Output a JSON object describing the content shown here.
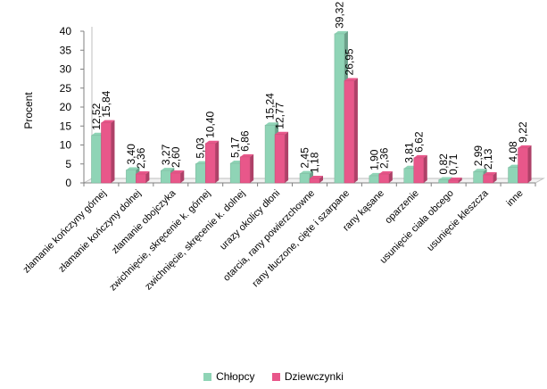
{
  "chart_data": {
    "type": "bar",
    "ylabel": "Procent",
    "ylim": [
      0,
      40
    ],
    "yticks": [
      0,
      5,
      10,
      15,
      20,
      25,
      30,
      35,
      40
    ],
    "grid": false,
    "legend_placement": "bottom",
    "categories": [
      "złamanie kończyny górnej",
      "złamanie kończyny dolnej",
      "złamanie obojczyka",
      "zwichnięcie, skręcenie k. górnej",
      "zwichnięcie, skręcenie k. dolnej",
      "urazy okolicy dłoni",
      "otarcia, rany powierzchowne",
      "rany tłuczone, cięte i szarpane",
      "rany kąsane",
      "oparzenie",
      "usunięcie ciała obcego",
      "usunięcie kleszcza",
      "inne"
    ],
    "series": [
      {
        "name": "Chłopcy",
        "color": "#8fd4b6",
        "values": [
          12.52,
          3.4,
          3.27,
          5.03,
          5.17,
          15.24,
          2.45,
          39.32,
          1.9,
          3.81,
          0.82,
          2.99,
          4.08
        ],
        "labels": [
          "12,52",
          "3,40",
          "3,27",
          "5,03",
          "5,17",
          "15,24",
          "2,45",
          "39,32",
          "1,90",
          "3,81",
          "0,82",
          "2,99",
          "4,08"
        ]
      },
      {
        "name": "Dziewczynki",
        "color": "#e8578a",
        "values": [
          15.84,
          2.36,
          2.6,
          10.4,
          6.86,
          12.77,
          1.18,
          26.95,
          2.36,
          6.62,
          0.71,
          2.13,
          9.22
        ],
        "labels": [
          "15,84",
          "2,36",
          "2,60",
          "10,40",
          "6,86",
          "12,77",
          "1,18",
          "26,95",
          "2,36",
          "6,62",
          "0,71",
          "2,13",
          "9,22"
        ]
      }
    ]
  }
}
